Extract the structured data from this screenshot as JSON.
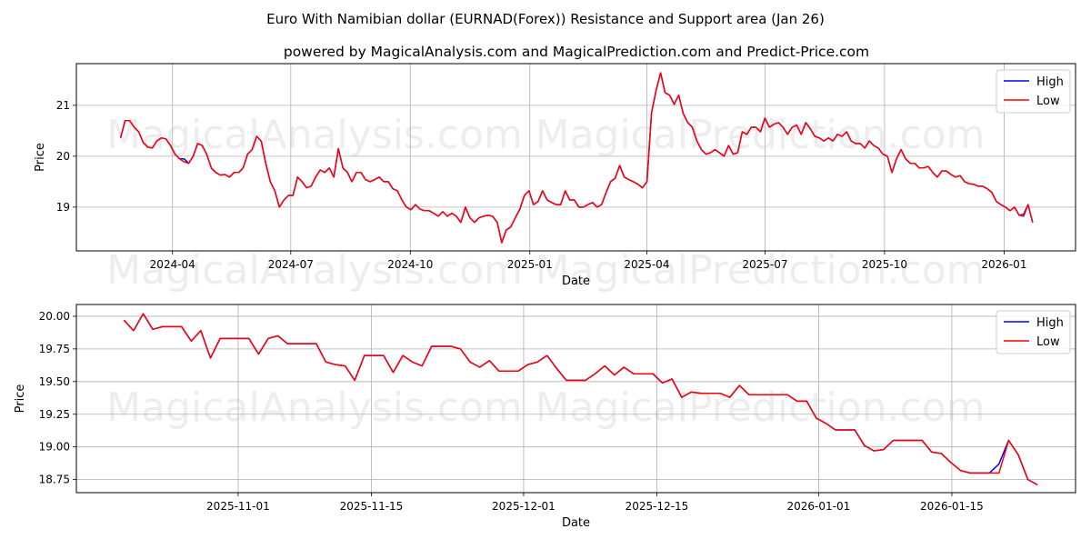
{
  "title": "Euro With Namibian dollar (EURNAD(Forex)) Resistance and Support area (Jan 26)",
  "subtitle": "powered by MagicalAnalysis.com and MagicalPrediction.com and Predict-Price.com",
  "watermarks": [
    "MagicalAnalysis.com",
    "MagicalPrediction.com"
  ],
  "colors": {
    "high": "#0000ff",
    "low": "#ff0000",
    "grid": "#b0b0b0"
  },
  "chart_data": [
    {
      "type": "line",
      "xlabel": "Date",
      "ylabel": "Price",
      "grid": true,
      "legend": {
        "placement": "top-right",
        "entries": [
          "High",
          "Low"
        ]
      },
      "x_start": "2024-02-21",
      "x_end": "2026-01-23",
      "xlim": [
        "2024-01-18",
        "2026-02-25"
      ],
      "ylim": [
        18.14,
        21.82
      ],
      "xticks": [
        {
          "date": "2024-04-01",
          "label": "2024-04"
        },
        {
          "date": "2024-07-01",
          "label": "2024-07"
        },
        {
          "date": "2024-10-01",
          "label": "2024-10"
        },
        {
          "date": "2025-01-01",
          "label": "2025-01"
        },
        {
          "date": "2025-04-01",
          "label": "2025-04"
        },
        {
          "date": "2025-07-01",
          "label": "2025-07"
        },
        {
          "date": "2025-10-01",
          "label": "2025-10"
        },
        {
          "date": "2026-01-01",
          "label": "2026-01"
        }
      ],
      "yticks": [
        {
          "v": 19,
          "label": "19"
        },
        {
          "v": 20,
          "label": "20"
        },
        {
          "v": 21,
          "label": "21"
        }
      ],
      "series": [
        {
          "name": "Low",
          "values": [
            20.36,
            20.7,
            20.7,
            20.57,
            20.48,
            20.27,
            20.18,
            20.16,
            20.3,
            20.36,
            20.34,
            20.21,
            20.04,
            19.95,
            19.89,
            19.86,
            20.0,
            20.25,
            20.21,
            20.04,
            19.77,
            19.68,
            19.63,
            19.64,
            19.59,
            19.68,
            19.68,
            19.77,
            20.04,
            20.13,
            20.39,
            20.3,
            19.86,
            19.5,
            19.32,
            19.0,
            19.14,
            19.23,
            19.23,
            19.59,
            19.5,
            19.38,
            19.41,
            19.59,
            19.73,
            19.68,
            19.77,
            19.59,
            20.15,
            19.77,
            19.68,
            19.5,
            19.68,
            19.68,
            19.54,
            19.5,
            19.54,
            19.59,
            19.5,
            19.5,
            19.36,
            19.32,
            19.14,
            19.0,
            18.95,
            19.05,
            18.96,
            18.93,
            18.93,
            18.88,
            18.82,
            18.91,
            18.82,
            18.88,
            18.82,
            18.7,
            19.0,
            18.79,
            18.7,
            18.79,
            18.82,
            18.84,
            18.82,
            18.7,
            18.3,
            18.55,
            18.61,
            18.79,
            18.96,
            19.23,
            19.32,
            19.05,
            19.11,
            19.32,
            19.14,
            19.09,
            19.05,
            19.05,
            19.32,
            19.14,
            19.14,
            19.0,
            19.0,
            19.05,
            19.09,
            19.0,
            19.05,
            19.29,
            19.5,
            19.57,
            19.82,
            19.59,
            19.54,
            19.5,
            19.45,
            19.38,
            19.5,
            20.85,
            21.29,
            21.64,
            21.25,
            21.2,
            21.02,
            21.2,
            20.84,
            20.66,
            20.57,
            20.3,
            20.13,
            20.04,
            20.07,
            20.13,
            20.07,
            20.0,
            20.21,
            20.04,
            20.07,
            20.48,
            20.43,
            20.57,
            20.57,
            20.48,
            20.75,
            20.57,
            20.63,
            20.66,
            20.57,
            20.43,
            20.57,
            20.61,
            20.43,
            20.66,
            20.54,
            20.39,
            20.36,
            20.3,
            20.36,
            20.3,
            20.43,
            20.39,
            20.48,
            20.3,
            20.25,
            20.25,
            20.16,
            20.3,
            20.21,
            20.16,
            20.04,
            20.0,
            19.68,
            19.95,
            20.13,
            19.95,
            19.86,
            19.86,
            19.77,
            19.77,
            19.8,
            19.68,
            19.59,
            19.71,
            19.71,
            19.64,
            19.59,
            19.62,
            19.5,
            19.46,
            19.45,
            19.41,
            19.41,
            19.36,
            19.29,
            19.11,
            19.05,
            19.0,
            18.93,
            19.0,
            18.84,
            18.82,
            19.05,
            18.7
          ]
        },
        {
          "name": "High",
          "values": [
            20.36,
            20.7,
            20.7,
            20.57,
            20.48,
            20.27,
            20.18,
            20.16,
            20.3,
            20.36,
            20.34,
            20.21,
            20.04,
            19.95,
            19.95,
            19.86,
            20.0,
            20.25,
            20.21,
            20.04,
            19.77,
            19.68,
            19.63,
            19.64,
            19.59,
            19.68,
            19.68,
            19.77,
            20.04,
            20.13,
            20.39,
            20.3,
            19.86,
            19.5,
            19.32,
            19.0,
            19.14,
            19.23,
            19.23,
            19.59,
            19.5,
            19.38,
            19.41,
            19.59,
            19.73,
            19.68,
            19.77,
            19.59,
            20.15,
            19.77,
            19.68,
            19.5,
            19.68,
            19.68,
            19.54,
            19.5,
            19.54,
            19.59,
            19.5,
            19.5,
            19.36,
            19.32,
            19.14,
            19.0,
            18.95,
            19.05,
            18.96,
            18.93,
            18.93,
            18.88,
            18.82,
            18.91,
            18.82,
            18.88,
            18.82,
            18.7,
            19.0,
            18.79,
            18.7,
            18.79,
            18.82,
            18.84,
            18.82,
            18.7,
            18.3,
            18.55,
            18.61,
            18.79,
            18.96,
            19.23,
            19.32,
            19.05,
            19.11,
            19.32,
            19.14,
            19.09,
            19.05,
            19.05,
            19.32,
            19.14,
            19.14,
            19.0,
            19.0,
            19.05,
            19.09,
            19.0,
            19.05,
            19.29,
            19.5,
            19.57,
            19.82,
            19.59,
            19.54,
            19.5,
            19.45,
            19.38,
            19.5,
            20.85,
            21.29,
            21.64,
            21.25,
            21.2,
            21.02,
            21.2,
            20.84,
            20.66,
            20.57,
            20.3,
            20.13,
            20.04,
            20.07,
            20.13,
            20.07,
            20.0,
            20.21,
            20.04,
            20.07,
            20.48,
            20.43,
            20.57,
            20.57,
            20.48,
            20.75,
            20.57,
            20.63,
            20.66,
            20.57,
            20.43,
            20.57,
            20.61,
            20.43,
            20.66,
            20.54,
            20.39,
            20.36,
            20.3,
            20.36,
            20.3,
            20.43,
            20.39,
            20.48,
            20.3,
            20.25,
            20.25,
            20.16,
            20.3,
            20.21,
            20.16,
            20.04,
            20.0,
            19.68,
            19.95,
            20.13,
            19.95,
            19.86,
            19.86,
            19.77,
            19.77,
            19.8,
            19.68,
            19.59,
            19.71,
            19.71,
            19.64,
            19.59,
            19.62,
            19.5,
            19.46,
            19.45,
            19.41,
            19.41,
            19.36,
            19.29,
            19.11,
            19.05,
            19.0,
            18.93,
            19.0,
            18.84,
            18.86,
            19.05,
            18.7
          ]
        }
      ]
    },
    {
      "type": "line",
      "xlabel": "Date",
      "ylabel": "Price",
      "grid": true,
      "legend": {
        "placement": "top-right",
        "entries": [
          "High",
          "Low"
        ]
      },
      "x_start": "2025-10-20",
      "x_end": "2026-01-24",
      "xlim": [
        "2025-10-15",
        "2026-01-28"
      ],
      "ylim": [
        18.65,
        20.09
      ],
      "xticks": [
        {
          "date": "2025-11-01",
          "label": "2025-11-01"
        },
        {
          "date": "2025-11-15",
          "label": "2025-11-15"
        },
        {
          "date": "2025-12-01",
          "label": "2025-12-01"
        },
        {
          "date": "2025-12-15",
          "label": "2025-12-15"
        },
        {
          "date": "2026-01-01",
          "label": "2026-01-01"
        },
        {
          "date": "2026-01-15",
          "label": "2026-01-15"
        }
      ],
      "yticks": [
        {
          "v": 18.75,
          "label": "18.75"
        },
        {
          "v": 19.0,
          "label": "19.00"
        },
        {
          "v": 19.25,
          "label": "19.25"
        },
        {
          "v": 19.5,
          "label": "19.50"
        },
        {
          "v": 19.75,
          "label": "19.75"
        },
        {
          "v": 20.0,
          "label": "20.00"
        }
      ],
      "series": [
        {
          "name": "High",
          "values": [
            19.97,
            19.89,
            20.02,
            19.9,
            19.92,
            19.92,
            19.92,
            19.81,
            19.89,
            19.68,
            19.83,
            19.83,
            19.83,
            19.83,
            19.71,
            19.83,
            19.85,
            19.79,
            19.79,
            19.79,
            19.79,
            19.65,
            19.63,
            19.62,
            19.51,
            19.7,
            19.7,
            19.7,
            19.57,
            19.7,
            19.65,
            19.62,
            19.77,
            19.77,
            19.77,
            19.75,
            19.65,
            19.61,
            19.66,
            19.58,
            19.58,
            19.58,
            19.63,
            19.65,
            19.7,
            19.6,
            19.51,
            19.51,
            19.51,
            19.56,
            19.62,
            19.55,
            19.61,
            19.56,
            19.56,
            19.56,
            19.49,
            19.52,
            19.38,
            19.42,
            19.41,
            19.41,
            19.41,
            19.38,
            19.47,
            19.4,
            19.4,
            19.4,
            19.4,
            19.4,
            19.35,
            19.35,
            19.22,
            19.18,
            19.13,
            19.13,
            19.13,
            19.01,
            18.97,
            18.98,
            19.05,
            19.05,
            19.05,
            19.05,
            18.96,
            18.95,
            18.88,
            18.82,
            18.8,
            18.8,
            18.8,
            18.87,
            19.05,
            18.94,
            18.75,
            18.71
          ]
        },
        {
          "name": "Low",
          "values": [
            19.97,
            19.89,
            20.02,
            19.9,
            19.92,
            19.92,
            19.92,
            19.81,
            19.89,
            19.68,
            19.83,
            19.83,
            19.83,
            19.83,
            19.71,
            19.83,
            19.85,
            19.79,
            19.79,
            19.79,
            19.79,
            19.65,
            19.63,
            19.62,
            19.51,
            19.7,
            19.7,
            19.7,
            19.57,
            19.7,
            19.65,
            19.62,
            19.77,
            19.77,
            19.77,
            19.75,
            19.65,
            19.61,
            19.66,
            19.58,
            19.58,
            19.58,
            19.63,
            19.65,
            19.7,
            19.6,
            19.51,
            19.51,
            19.51,
            19.56,
            19.62,
            19.55,
            19.61,
            19.56,
            19.56,
            19.56,
            19.49,
            19.52,
            19.38,
            19.42,
            19.41,
            19.41,
            19.41,
            19.38,
            19.47,
            19.4,
            19.4,
            19.4,
            19.4,
            19.4,
            19.35,
            19.35,
            19.22,
            19.18,
            19.13,
            19.13,
            19.13,
            19.01,
            18.97,
            18.98,
            19.05,
            19.05,
            19.05,
            19.05,
            18.96,
            18.95,
            18.88,
            18.82,
            18.8,
            18.8,
            18.8,
            18.8,
            19.05,
            18.94,
            18.75,
            18.71
          ]
        }
      ]
    }
  ]
}
